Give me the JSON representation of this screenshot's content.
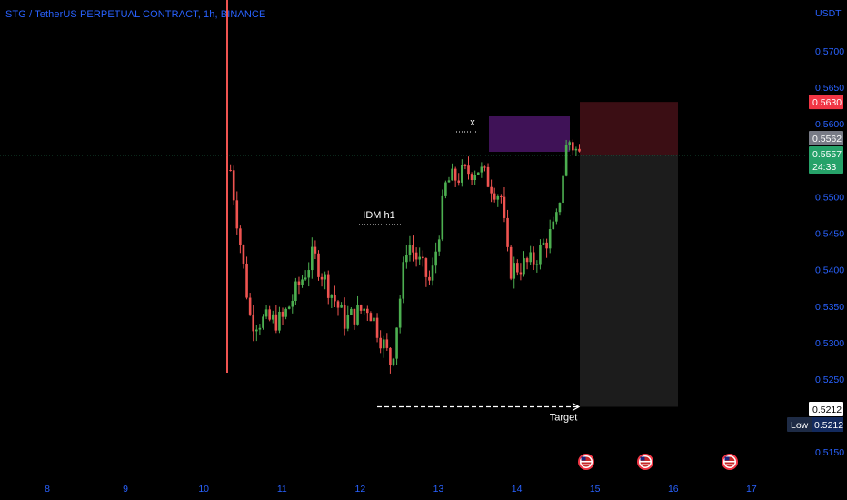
{
  "chart": {
    "title": "STG / TetherUS PERPETUAL CONTRACT, 1h, BINANCE",
    "currency": "USDT",
    "colors": {
      "accent": "#2962ff",
      "up": "#26a69a",
      "up_candle": "#4caf50",
      "down_candle": "#ef5350",
      "stop_zone": "#3b0e14",
      "target_zone": "#1c1c1c",
      "supply_zone": "#3f1257",
      "current_price": "#26a269",
      "stop_badge": "#f23645"
    },
    "price_badges": {
      "stop": "0.5630",
      "last": "0.5562",
      "current": "0.5557",
      "countdown": "24:33",
      "target": "0.5212",
      "low_label": "Low",
      "low_value": "0.5212"
    },
    "annotations": {
      "x_label": "x",
      "idm_label": "IDM h1",
      "target_label": "Target"
    },
    "event_icon": "us-flag-icon",
    "event_icon_count": 3
  },
  "chart_data": {
    "type": "candlestick",
    "title": "STG / TetherUS PERPETUAL CONTRACT, 1h, BINANCE",
    "ylabel": "USDT",
    "ylim": [
      0.5125,
      0.5775
    ],
    "yticks": [
      "0.5700",
      "0.5650",
      "0.5600",
      "0.5500",
      "0.5450",
      "0.5400",
      "0.5350",
      "0.5300",
      "0.5250",
      "0.5150"
    ],
    "xticks": [
      "8",
      "9",
      "10",
      "11",
      "12",
      "13",
      "14",
      "15",
      "16",
      "17"
    ],
    "grid": false,
    "levels": {
      "current_price": 0.5557,
      "stop": 0.563,
      "target": 0.5212,
      "low": 0.5212
    },
    "approx_price_path": [
      {
        "day": 10.3,
        "price": 0.557
      },
      {
        "day": 10.6,
        "price": 0.533
      },
      {
        "day": 11.0,
        "price": 0.533
      },
      {
        "day": 11.4,
        "price": 0.542
      },
      {
        "day": 11.8,
        "price": 0.533
      },
      {
        "day": 12.1,
        "price": 0.535
      },
      {
        "day": 12.4,
        "price": 0.527
      },
      {
        "day": 12.6,
        "price": 0.544
      },
      {
        "day": 12.9,
        "price": 0.538
      },
      {
        "day": 13.1,
        "price": 0.552
      },
      {
        "day": 13.5,
        "price": 0.554
      },
      {
        "day": 13.8,
        "price": 0.55
      },
      {
        "day": 13.9,
        "price": 0.54
      },
      {
        "day": 14.2,
        "price": 0.541
      },
      {
        "day": 14.5,
        "price": 0.546
      },
      {
        "day": 14.65,
        "price": 0.558
      },
      {
        "day": 14.8,
        "price": 0.5557
      }
    ]
  }
}
